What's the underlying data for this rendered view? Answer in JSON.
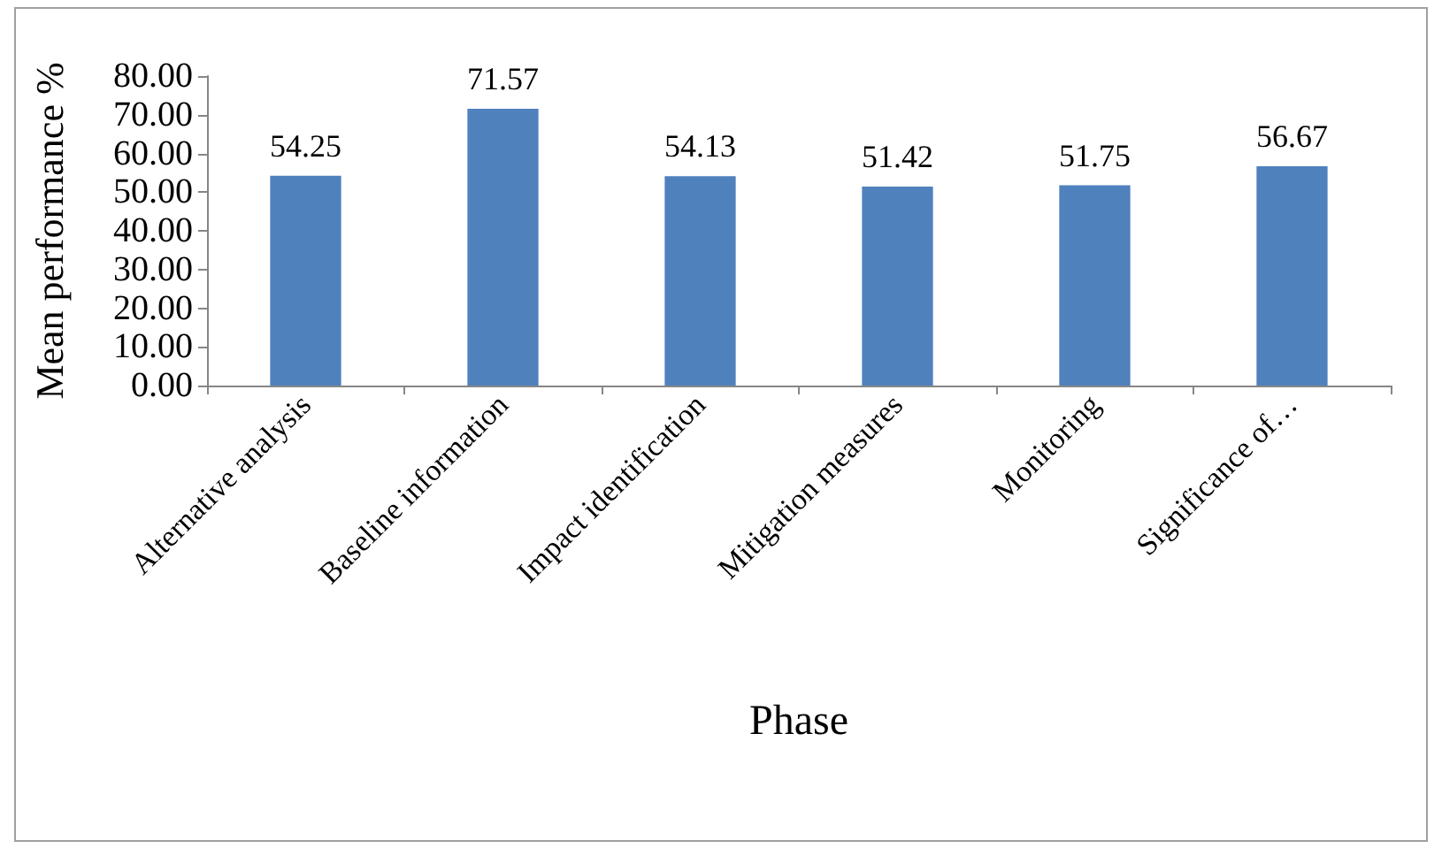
{
  "chart_data": {
    "type": "bar",
    "xlabel": "Phase",
    "ylabel": "Mean performance %",
    "categories": [
      "Alternative analysis",
      "Baseline information",
      "Impact identification",
      "Mitigation measures",
      "Monitoring",
      "Significance of…"
    ],
    "values": [
      54.25,
      71.57,
      54.13,
      51.42,
      51.75,
      56.67
    ],
    "color": "#4f81bd",
    "ylim": [
      0,
      80
    ],
    "yticks": [
      {
        "value": 0,
        "label": "0.00"
      },
      {
        "value": 10,
        "label": "10.00"
      },
      {
        "value": 20,
        "label": "20.00"
      },
      {
        "value": 30,
        "label": "30.00"
      },
      {
        "value": 40,
        "label": "40.00"
      },
      {
        "value": 50,
        "label": "50.00"
      },
      {
        "value": 60,
        "label": "60.00"
      },
      {
        "value": 70,
        "label": "70.00"
      },
      {
        "value": 80,
        "label": "80.00"
      }
    ],
    "grid": false,
    "data_labels": true
  }
}
